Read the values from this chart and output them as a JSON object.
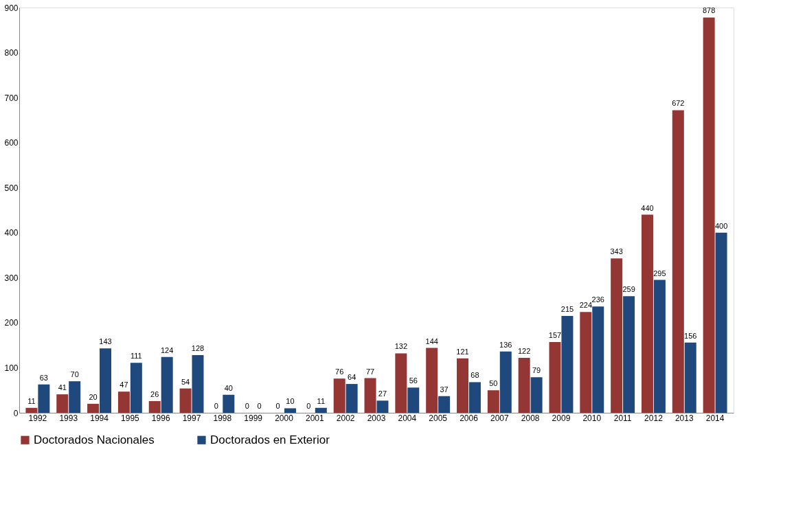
{
  "chart_data": {
    "type": "bar",
    "categories": [
      "1992",
      "1993",
      "1994",
      "1995",
      "1996",
      "1997",
      "1998",
      "1999",
      "2000",
      "2001",
      "2002",
      "2003",
      "2004",
      "2005",
      "2006",
      "2007",
      "2008",
      "2009",
      "2010",
      "2011",
      "2012",
      "2013",
      "2014"
    ],
    "series": [
      {
        "name": "Doctorados Nacionales",
        "color": "#943634",
        "values": [
          11,
          41,
          20,
          47,
          26,
          54,
          0,
          0,
          0,
          0,
          76,
          77,
          132,
          144,
          121,
          50,
          122,
          157,
          224,
          343,
          440,
          672,
          878
        ]
      },
      {
        "name": "Doctorados en Exterior",
        "color": "#1f497d",
        "values": [
          63,
          70,
          143,
          111,
          124,
          128,
          40,
          0,
          10,
          11,
          64,
          27,
          56,
          37,
          68,
          136,
          79,
          215,
          236,
          259,
          295,
          156,
          400
        ]
      }
    ],
    "ylim": [
      0,
      900
    ],
    "yticks": [
      0,
      100,
      200,
      300,
      400,
      500,
      600,
      700,
      800,
      900
    ],
    "legend": "bottom",
    "data_labels": true
  }
}
